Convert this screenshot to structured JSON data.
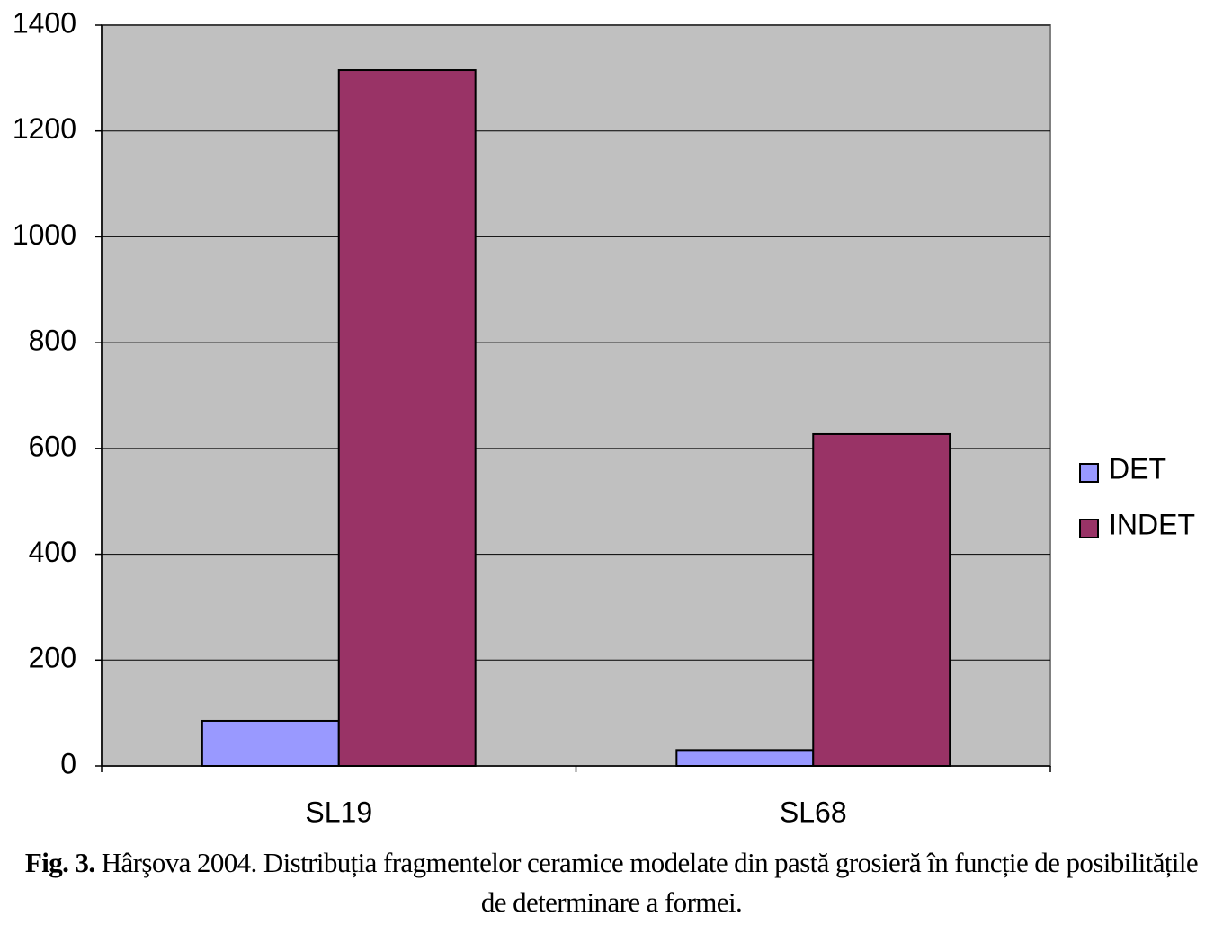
{
  "chart_data": {
    "type": "bar",
    "categories": [
      "SL19",
      "SL68"
    ],
    "series": [
      {
        "name": "DET",
        "color": "#9999ff",
        "values": [
          85,
          30
        ]
      },
      {
        "name": "INDET",
        "color": "#993366",
        "values": [
          1315,
          627
        ]
      }
    ],
    "ylim": [
      0,
      1400
    ],
    "yticks": [
      0,
      200,
      400,
      600,
      800,
      1000,
      1200,
      1400
    ],
    "grid": true,
    "legend": "right",
    "caption_label": "Fig. 3.",
    "caption": "Hârşova 2004. Distribuția fragmentelor ceramice modelate din pastă grosieră în funcție de posibilitățile de determinare a formei."
  }
}
